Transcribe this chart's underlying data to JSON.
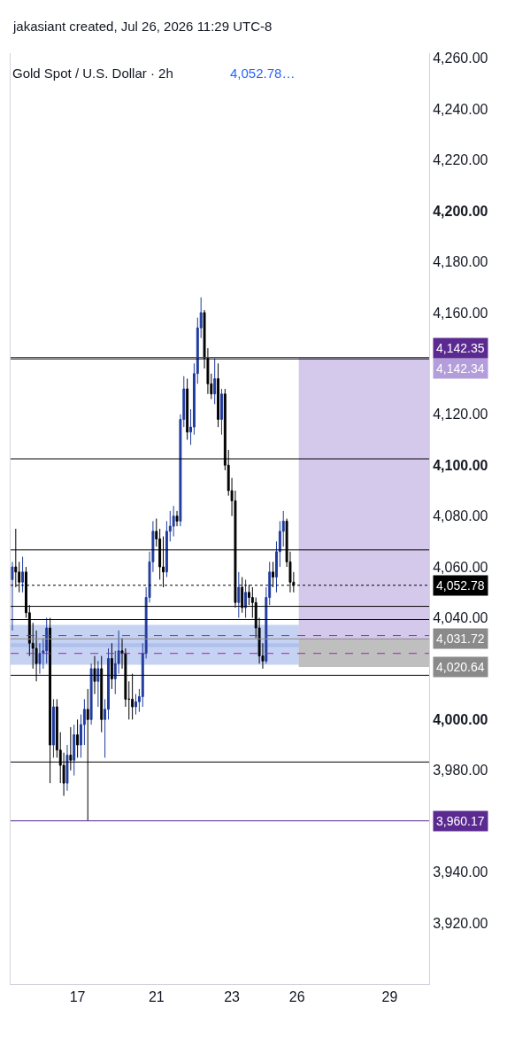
{
  "chart_data": {
    "type": "candlestick",
    "title": "Gold Spot / U.S. Dollar · 2h",
    "subtitle": "4,052.78…",
    "annotations": [
      "jakasiant created, Jul 26, 2026 11:29 UTC-8"
    ],
    "categories": [
      null,
      null,
      null,
      null,
      null,
      null,
      null,
      null,
      null,
      null,
      null,
      null,
      null,
      null,
      null,
      null,
      null,
      null,
      null,
      "17",
      null,
      null,
      null,
      null,
      null,
      null,
      null,
      null,
      null,
      null,
      null,
      null,
      null,
      null,
      null,
      null,
      null,
      null,
      null,
      null,
      null,
      null,
      "21",
      null,
      null,
      null,
      null,
      null,
      null,
      null,
      null,
      null,
      null,
      null,
      null,
      null,
      null,
      null,
      null,
      null,
      null,
      null,
      null,
      null,
      "23",
      null,
      null,
      null,
      null,
      null,
      null,
      null,
      null,
      null,
      null,
      null,
      null,
      null,
      null,
      null,
      null,
      null,
      null,
      "26",
      null,
      null,
      null,
      null,
      null,
      null,
      null,
      null,
      null,
      null,
      null,
      null,
      null,
      null,
      null,
      null,
      null,
      null,
      null,
      null,
      null,
      null,
      null,
      null,
      null,
      null,
      "29",
      null,
      null,
      null,
      null,
      null,
      null,
      null,
      null,
      null,
      null,
      null
    ],
    "ohlc": [
      [
        4055,
        4062,
        4035,
        4060
      ],
      [
        4060,
        4075,
        4052,
        4058
      ],
      [
        4058,
        4062,
        4050,
        4054
      ],
      [
        4054,
        4064,
        4050,
        4058
      ],
      [
        4058,
        4060,
        4040,
        4042
      ],
      [
        4042,
        4045,
        4025,
        4030
      ],
      [
        4030,
        4038,
        4020,
        4028
      ],
      [
        4028,
        4035,
        4015,
        4022
      ],
      [
        4022,
        4030,
        4018,
        4026
      ],
      [
        4026,
        4032,
        4020,
        4027
      ],
      [
        4027,
        4040,
        4022,
        4036
      ],
      [
        4036,
        4040,
        3975,
        3990
      ],
      [
        3990,
        4008,
        3985,
        4005
      ],
      [
        4005,
        4008,
        3985,
        3988
      ],
      [
        3988,
        3995,
        3975,
        3982
      ],
      [
        3982,
        3987,
        3970,
        3975
      ],
      [
        3975,
        3990,
        3972,
        3986
      ],
      [
        3986,
        3997,
        3980,
        3984
      ],
      [
        3984,
        3998,
        3978,
        3994
      ],
      [
        3994,
        4000,
        3985,
        3990
      ],
      [
        3990,
        4002,
        3985,
        3998
      ],
      [
        3998,
        4008,
        3990,
        4004
      ],
      [
        4004,
        4012,
        3960.17,
        4000
      ],
      [
        4000,
        4022,
        3998,
        4020
      ],
      [
        4020,
        4025,
        4010,
        4015
      ],
      [
        4015,
        4023,
        4005,
        4020
      ],
      [
        4020,
        4025,
        3995,
        4000
      ],
      [
        4000,
        4008,
        3985,
        4004
      ],
      [
        4004,
        4028,
        4000,
        4024
      ],
      [
        4024,
        4030,
        4012,
        4016
      ],
      [
        4016,
        4027,
        4010,
        4022
      ],
      [
        4022,
        4035,
        4018,
        4027
      ],
      [
        4027,
        4032,
        4020,
        4026
      ],
      [
        4026,
        4028,
        4005,
        4008
      ],
      [
        4008,
        4015,
        4000,
        4008
      ],
      [
        4008,
        4018,
        4000,
        4005
      ],
      [
        4005,
        4010,
        4002,
        4007
      ],
      [
        4007,
        4012,
        4003,
        4009
      ],
      [
        4009,
        4030,
        4005,
        4026
      ],
      [
        4026,
        4052,
        4024,
        4048
      ],
      [
        4048,
        4066,
        4046,
        4062
      ],
      [
        4062,
        4078,
        4058,
        4074
      ],
      [
        4074,
        4079,
        4068,
        4071
      ],
      [
        4071,
        4075,
        4055,
        4060
      ],
      [
        4060,
        4072,
        4052,
        4058
      ],
      [
        4058,
        4078,
        4056,
        4074
      ],
      [
        4074,
        4082,
        4070,
        4076
      ],
      [
        4076,
        4084,
        4072,
        4080
      ],
      [
        4080,
        4082,
        4076,
        4078
      ],
      [
        4078,
        4120,
        4076,
        4118
      ],
      [
        4118,
        4135,
        4115,
        4130
      ],
      [
        4130,
        4134,
        4110,
        4113
      ],
      [
        4113,
        4122,
        4108,
        4115
      ],
      [
        4115,
        4140,
        4112,
        4136
      ],
      [
        4136,
        4158,
        4132,
        4154
      ],
      [
        4154,
        4166,
        4150,
        4160
      ],
      [
        4160,
        4161,
        4138,
        4142
      ],
      [
        4142,
        4146,
        4128,
        4132
      ],
      [
        4132,
        4136,
        4126,
        4128
      ],
      [
        4128,
        4142,
        4124,
        4134
      ],
      [
        4134,
        4140,
        4115,
        4118
      ],
      [
        4118,
        4130,
        4112,
        4128
      ],
      [
        4128,
        4130,
        4098,
        4100
      ],
      [
        4100,
        4106,
        4088,
        4090
      ],
      [
        4090,
        4095,
        4080,
        4086
      ],
      [
        4086,
        4090,
        4044,
        4046
      ],
      [
        4046,
        4058,
        4040,
        4052
      ],
      [
        4052,
        4056,
        4042,
        4044
      ],
      [
        4044,
        4055,
        4040,
        4050
      ],
      [
        4050,
        4053,
        4045,
        4048
      ],
      [
        4048,
        4052,
        4040,
        4046
      ],
      [
        4046,
        4048,
        4032,
        4036
      ],
      [
        4036,
        4040,
        4022,
        4025
      ],
      [
        4025,
        4030,
        4020,
        4023
      ],
      [
        4023,
        4052,
        4022,
        4048
      ],
      [
        4048,
        4062,
        4045,
        4058
      ],
      [
        4058,
        4062,
        4052,
        4056
      ],
      [
        4056,
        4070,
        4050,
        4066
      ],
      [
        4066,
        4078,
        4060,
        4074
      ],
      [
        4074,
        4082,
        4068,
        4078
      ],
      [
        4078,
        4079,
        4060,
        4062
      ],
      [
        4062,
        4066,
        4050,
        4054
      ],
      [
        4054,
        4058,
        4050,
        4052.78
      ],
      null,
      null,
      null,
      null,
      null,
      null,
      null,
      null,
      null,
      null,
      null,
      null,
      null,
      null,
      null,
      null,
      null,
      null,
      null,
      null,
      null,
      null,
      null,
      null,
      null,
      null,
      null,
      null,
      null,
      null,
      null,
      null,
      null,
      null,
      null,
      null,
      null,
      null,
      null
    ],
    "ylim": [
      3896,
      4262
    ],
    "yticks": [
      {
        "value": 3920,
        "label": "3,920.00"
      },
      {
        "value": 3940,
        "label": "3,940.00"
      },
      {
        "value": 3980,
        "label": "3,980.00"
      },
      {
        "value": 4000,
        "label": "4,000.00"
      },
      {
        "value": 4040,
        "label": "4,040.00"
      },
      {
        "value": 4060,
        "label": "4,060.00"
      },
      {
        "value": 4080,
        "label": "4,080.00"
      },
      {
        "value": 4100,
        "label": "4,100.00"
      },
      {
        "value": 4120,
        "label": "4,120.00"
      },
      {
        "value": 4160,
        "label": "4,160.00"
      },
      {
        "value": 4180,
        "label": "4,180.00"
      },
      {
        "value": 4200,
        "label": "4,200.00"
      },
      {
        "value": 4220,
        "label": "4,220.00"
      },
      {
        "value": 4240,
        "label": "4,240.00"
      },
      {
        "value": 4260,
        "label": "4,260.00"
      }
    ],
    "bands": [
      {
        "axis": "y",
        "from": 4028.5,
        "to": 4037.2,
        "label": null,
        "color": "#9fb4ea"
      },
      {
        "axis": "y",
        "from": 4021.5,
        "to": 4030,
        "label": null,
        "color": "#9fb4ea"
      },
      {
        "axis": "y",
        "from": 4031.72,
        "to": 4142.34,
        "label": "4,142.34",
        "color": "#b39ddb"
      },
      {
        "axis": "y",
        "from": 4020.64,
        "to": 4031.72,
        "label": "4,020.64",
        "color": "#8a8a8a"
      }
    ],
    "ref_lines": [
      {
        "axis": "y",
        "value": 4142.35,
        "label": "4,142.35",
        "color": "#5b2a91",
        "line_style": "solid"
      },
      {
        "axis": "y",
        "value": 4052.78,
        "label": "4,052.78",
        "color": "#000000",
        "line_style": "dotted"
      },
      {
        "axis": "y",
        "value": 4031.72,
        "label": "4,031.72",
        "color": "#8a8a8a",
        "line_style": "solid"
      },
      {
        "axis": "y",
        "value": 3960.17,
        "label": "3,960.17",
        "color": "#5b2a91",
        "line_style": "solid"
      },
      {
        "axis": "y",
        "value": 4033,
        "label": null,
        "color": "#9c27b0",
        "line_style": "dashed"
      },
      {
        "axis": "y",
        "value": 4026,
        "label": null,
        "color": "#9c27b0",
        "line_style": "dashed"
      },
      {
        "axis": "y",
        "value": 4102.5,
        "label": null,
        "color": "#000000",
        "line_style": "solid"
      },
      {
        "axis": "y",
        "value": 4141.8,
        "label": null,
        "color": "#000000",
        "line_style": "solid"
      },
      {
        "axis": "y",
        "value": 4066.7,
        "label": null,
        "color": "#000000",
        "line_style": "solid"
      },
      {
        "axis": "y",
        "value": 4044.5,
        "label": null,
        "color": "#000000",
        "line_style": "solid"
      },
      {
        "axis": "y",
        "value": 4039.3,
        "label": null,
        "color": "#000000",
        "line_style": "solid"
      },
      {
        "axis": "y",
        "value": 4017.4,
        "label": null,
        "color": "#000000",
        "line_style": "solid"
      },
      {
        "axis": "y",
        "value": 3983.3,
        "label": null,
        "color": "#000000",
        "line_style": "solid"
      }
    ],
    "grid": false,
    "legend": false
  }
}
